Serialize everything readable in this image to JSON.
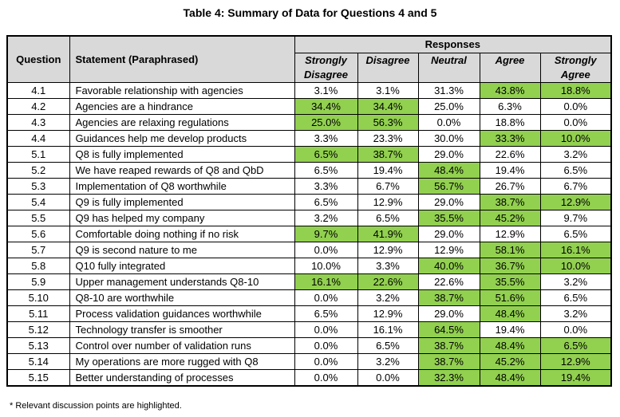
{
  "title": "Table 4: Summary of Data for Questions 4 and 5",
  "highlight_color": "#92d050",
  "header_color": "#d9d9d9",
  "headers": {
    "question": "Question",
    "statement": "Statement (Paraphrased)",
    "responses": "Responses",
    "columns": [
      {
        "line1": "Strongly",
        "line2": "Disagree"
      },
      {
        "line1": "Disagree",
        "line2": ""
      },
      {
        "line1": "Neutral",
        "line2": ""
      },
      {
        "line1": "Agree",
        "line2": ""
      },
      {
        "line1": "Strongly",
        "line2": "Agree"
      }
    ]
  },
  "rows": [
    {
      "q": "4.1",
      "s": "Favorable relationship with agencies",
      "v": [
        "3.1%",
        "3.1%",
        "31.3%",
        "43.8%",
        "18.8%"
      ],
      "h": [
        false,
        false,
        false,
        true,
        true
      ]
    },
    {
      "q": "4.2",
      "s": "Agencies are a hindrance",
      "v": [
        "34.4%",
        "34.4%",
        "25.0%",
        "6.3%",
        "0.0%"
      ],
      "h": [
        true,
        true,
        false,
        false,
        false
      ]
    },
    {
      "q": "4.3",
      "s": "Agencies are relaxing regulations",
      "v": [
        "25.0%",
        "56.3%",
        "0.0%",
        "18.8%",
        "0.0%"
      ],
      "h": [
        true,
        true,
        false,
        false,
        false
      ]
    },
    {
      "q": "4.4",
      "s": "Guidances help me develop products",
      "v": [
        "3.3%",
        "23.3%",
        "30.0%",
        "33.3%",
        "10.0%"
      ],
      "h": [
        false,
        false,
        false,
        true,
        true
      ]
    },
    {
      "q": "5.1",
      "s": "Q8 is fully implemented",
      "v": [
        "6.5%",
        "38.7%",
        "29.0%",
        "22.6%",
        "3.2%"
      ],
      "h": [
        true,
        true,
        false,
        false,
        false
      ]
    },
    {
      "q": "5.2",
      "s": "We have reaped rewards of Q8 and QbD",
      "v": [
        "6.5%",
        "19.4%",
        "48.4%",
        "19.4%",
        "6.5%"
      ],
      "h": [
        false,
        false,
        true,
        false,
        false
      ]
    },
    {
      "q": "5.3",
      "s": "Implementation of Q8 worthwhile",
      "v": [
        "3.3%",
        "6.7%",
        "56.7%",
        "26.7%",
        "6.7%"
      ],
      "h": [
        false,
        false,
        true,
        false,
        false
      ]
    },
    {
      "q": "5.4",
      "s": "Q9 is fully implemented",
      "v": [
        "6.5%",
        "12.9%",
        "29.0%",
        "38.7%",
        "12.9%"
      ],
      "h": [
        false,
        false,
        false,
        true,
        true
      ]
    },
    {
      "q": "5.5",
      "s": "Q9 has helped my company",
      "v": [
        "3.2%",
        "6.5%",
        "35.5%",
        "45.2%",
        "9.7%"
      ],
      "h": [
        false,
        false,
        true,
        true,
        false
      ]
    },
    {
      "q": "5.6",
      "s": "Comfortable doing nothing if no risk",
      "v": [
        "9.7%",
        "41.9%",
        "29.0%",
        "12.9%",
        "6.5%"
      ],
      "h": [
        true,
        true,
        false,
        false,
        false
      ]
    },
    {
      "q": "5.7",
      "s": "Q9 is second nature to me",
      "v": [
        "0.0%",
        "12.9%",
        "12.9%",
        "58.1%",
        "16.1%"
      ],
      "h": [
        false,
        false,
        false,
        true,
        true
      ]
    },
    {
      "q": "5.8",
      "s": "Q10 fully integrated",
      "v": [
        "10.0%",
        "3.3%",
        "40.0%",
        "36.7%",
        "10.0%"
      ],
      "h": [
        false,
        false,
        true,
        true,
        true
      ]
    },
    {
      "q": "5.9",
      "s": "Upper management understands Q8-10",
      "v": [
        "16.1%",
        "22.6%",
        "22.6%",
        "35.5%",
        "3.2%"
      ],
      "h": [
        true,
        true,
        false,
        true,
        false
      ]
    },
    {
      "q": "5.10",
      "s": "Q8-10 are worthwhile",
      "v": [
        "0.0%",
        "3.2%",
        "38.7%",
        "51.6%",
        "6.5%"
      ],
      "h": [
        false,
        false,
        true,
        true,
        false
      ]
    },
    {
      "q": "5.11",
      "s": "Process validation guidances worthwhile",
      "v": [
        "6.5%",
        "12.9%",
        "29.0%",
        "48.4%",
        "3.2%"
      ],
      "h": [
        false,
        false,
        false,
        true,
        false
      ]
    },
    {
      "q": "5.12",
      "s": "Technology transfer is smoother",
      "v": [
        "0.0%",
        "16.1%",
        "64.5%",
        "19.4%",
        "0.0%"
      ],
      "h": [
        false,
        false,
        true,
        false,
        false
      ]
    },
    {
      "q": "5.13",
      "s": "Control over number of validation runs",
      "v": [
        "0.0%",
        "6.5%",
        "38.7%",
        "48.4%",
        "6.5%"
      ],
      "h": [
        false,
        false,
        true,
        true,
        true
      ]
    },
    {
      "q": "5.14",
      "s": "My operations are more rugged with Q8",
      "v": [
        "0.0%",
        "3.2%",
        "38.7%",
        "45.2%",
        "12.9%"
      ],
      "h": [
        false,
        false,
        true,
        true,
        true
      ]
    },
    {
      "q": "5.15",
      "s": "Better understanding of processes",
      "v": [
        "0.0%",
        "0.0%",
        "32.3%",
        "48.4%",
        "19.4%"
      ],
      "h": [
        false,
        false,
        true,
        true,
        true
      ]
    }
  ],
  "footnote": "* Relevant discussion points are highlighted."
}
